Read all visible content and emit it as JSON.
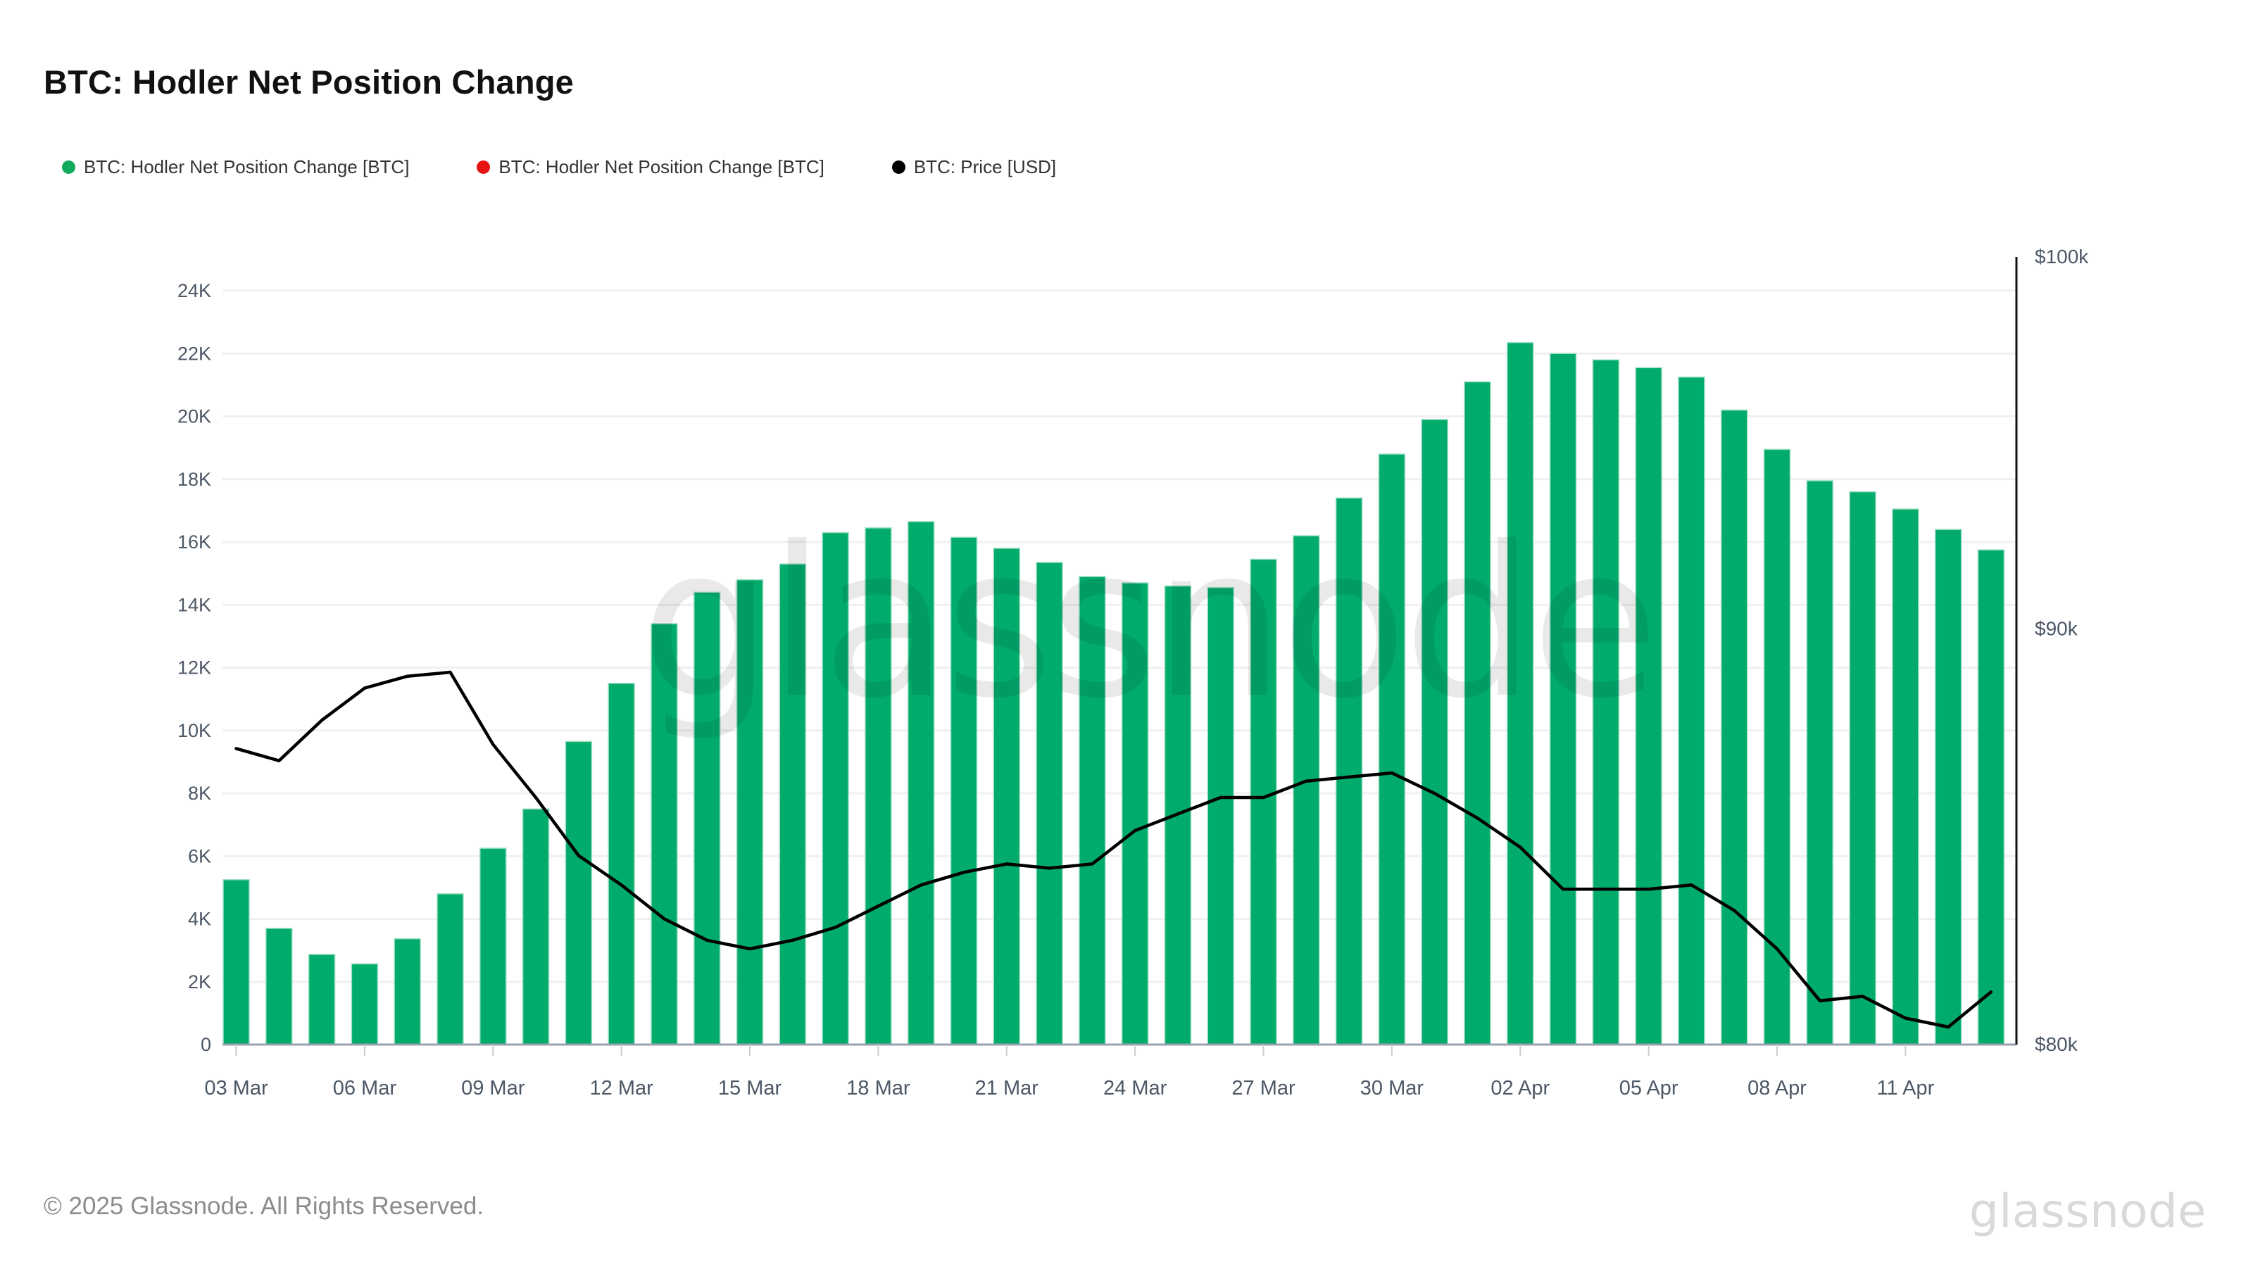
{
  "header": {
    "title": "BTC: Hodler Net Position Change"
  },
  "legend": {
    "items": [
      {
        "label": "BTC: Hodler Net Position Change [BTC]",
        "color": "#12a95c",
        "marker": "circle"
      },
      {
        "label": "BTC: Hodler Net Position Change [BTC]",
        "color": "#e61313",
        "marker": "circle"
      },
      {
        "label": "BTC: Price [USD]",
        "color": "#000000",
        "marker": "circle"
      }
    ]
  },
  "chart_data": {
    "type": "bar",
    "title": "BTC: Hodler Net Position Change",
    "x": [
      "03 Mar",
      "04 Mar",
      "05 Mar",
      "06 Mar",
      "07 Mar",
      "08 Mar",
      "09 Mar",
      "10 Mar",
      "11 Mar",
      "12 Mar",
      "13 Mar",
      "14 Mar",
      "15 Mar",
      "16 Mar",
      "17 Mar",
      "18 Mar",
      "19 Mar",
      "20 Mar",
      "21 Mar",
      "22 Mar",
      "23 Mar",
      "24 Mar",
      "25 Mar",
      "26 Mar",
      "27 Mar",
      "28 Mar",
      "29 Mar",
      "30 Mar",
      "31 Mar",
      "01 Apr",
      "02 Apr",
      "03 Apr",
      "04 Apr",
      "05 Apr",
      "06 Apr",
      "07 Apr",
      "08 Apr",
      "09 Apr",
      "10 Apr",
      "11 Apr",
      "12 Apr",
      "13 Apr"
    ],
    "series": [
      {
        "name": "BTC: Hodler Net Position Change [BTC]",
        "type": "bar",
        "axis": "left",
        "unit": "K BTC",
        "color": "#00ab6c",
        "edge_color": "#9fdfc3",
        "values": [
          5.25,
          3.7,
          2.87,
          2.57,
          3.37,
          4.8,
          6.25,
          7.5,
          9.65,
          11.5,
          13.4,
          14.4,
          14.8,
          15.3,
          16.3,
          16.45,
          16.65,
          16.15,
          15.8,
          15.35,
          14.9,
          14.7,
          14.6,
          14.55,
          15.45,
          16.2,
          17.4,
          18.8,
          19.9,
          21.1,
          22.35,
          22.0,
          21.8,
          21.55,
          21.25,
          20.2,
          18.95,
          17.95,
          17.6,
          17.05,
          16.4,
          15.75
        ]
      },
      {
        "name": "BTC: Price [USD]",
        "type": "line",
        "axis": "right",
        "unit": "USD thousands",
        "color": "#000000",
        "values": [
          87.0,
          86.7,
          87.7,
          88.5,
          88.8,
          88.9,
          87.1,
          85.8,
          84.4,
          83.7,
          82.9,
          82.4,
          82.2,
          82.4,
          82.7,
          83.2,
          83.7,
          84.0,
          84.2,
          84.1,
          84.2,
          85.0,
          85.4,
          85.8,
          85.8,
          86.2,
          86.3,
          86.4,
          85.9,
          85.3,
          84.6,
          83.6,
          83.6,
          83.6,
          83.7,
          83.1,
          82.2,
          81.0,
          81.1,
          80.6,
          80.4,
          81.2
        ]
      }
    ],
    "x_tick_every": 3,
    "x_tick_labels": [
      "03 Mar",
      "06 Mar",
      "09 Mar",
      "12 Mar",
      "15 Mar",
      "18 Mar",
      "21 Mar",
      "24 Mar",
      "27 Mar",
      "30 Mar",
      "02 Apr",
      "05 Apr",
      "08 Apr",
      "11 Apr"
    ],
    "y_left": {
      "min": 0,
      "max": 24,
      "step": 2,
      "tick_labels": [
        "0",
        "2K",
        "4K",
        "6K",
        "8K",
        "10K",
        "12K",
        "14K",
        "16K",
        "18K",
        "20K",
        "22K",
        "24K"
      ],
      "unit": "K BTC"
    },
    "y_right": {
      "scale": "log",
      "min": 80,
      "max": 100,
      "tick_labels": [
        "$80k",
        "$90k",
        "$100k"
      ],
      "tick_values": [
        80,
        90,
        100
      ],
      "unit": "USD k"
    },
    "grid": "horizontal",
    "legend_position": "top-left",
    "watermark": "glassnode",
    "colors": {
      "grid": "#f0f0f0",
      "baseline": "#9aa3ad",
      "tick": "#c9ced4",
      "axis_text": "#4d5866",
      "right_spine": "#111111"
    }
  },
  "footer": {
    "copyright": "© 2025 Glassnode. All Rights Reserved.",
    "brand": "glassnode"
  }
}
